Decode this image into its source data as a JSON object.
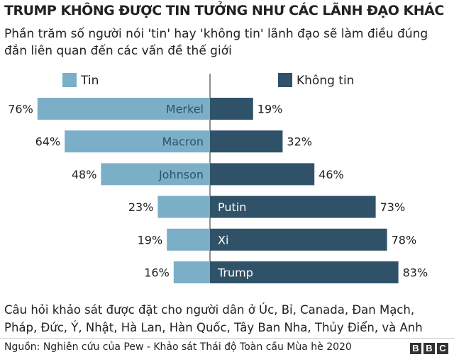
{
  "header": {
    "title": "TRUMP KHÔNG ĐƯỢC TIN TƯỞNG NHƯ CÁC LÃNH ĐẠO KHÁC",
    "subtitle": "Phần trăm số người nói 'tin' hay 'không tin' lãnh đạo sẽ làm điều đúng đắn liên quan đến các vấn đề thế giới"
  },
  "footer": {
    "note_line1": "Câu hỏi khảo sát được đặt cho người dân ở Úc, Bỉ, Canada, Đan Mạch,",
    "note_line2": "Pháp, Đức, Ý, Nhật, Hà Lan, Hàn Quốc, Tây Ban Nha, Thủy Điển, và Anh",
    "source": "Nguồn: Nghiên cứu của Pew - Khảo sát Thái độ Toàn cầu Mùa hè 2020",
    "logo_letters": [
      "B",
      "B",
      "C"
    ]
  },
  "colors": {
    "trust": "#7bafc8",
    "no_trust": "#2f5268",
    "trust_label_text": "#2f5268",
    "no_trust_label_text": "#ffffff"
  },
  "chart_data": {
    "type": "bar",
    "orientation": "horizontal-diverging",
    "categories": [
      "Merkel",
      "Macron",
      "Johnson",
      "Putin",
      "Xi",
      "Trump"
    ],
    "series": [
      {
        "name": "Tin",
        "values": [
          76,
          64,
          48,
          23,
          19,
          16
        ],
        "labels": [
          "76%",
          "64%",
          "48%",
          "23%",
          "19%",
          "16%"
        ]
      },
      {
        "name": "Không tin",
        "values": [
          19,
          32,
          46,
          73,
          78,
          83
        ],
        "labels": [
          "19%",
          "32%",
          "46%",
          "73%",
          "78%",
          "83%"
        ]
      }
    ],
    "legend": {
      "position": "top",
      "items": [
        "Tin",
        "Không tin"
      ]
    },
    "unit": "%",
    "grid": false
  }
}
